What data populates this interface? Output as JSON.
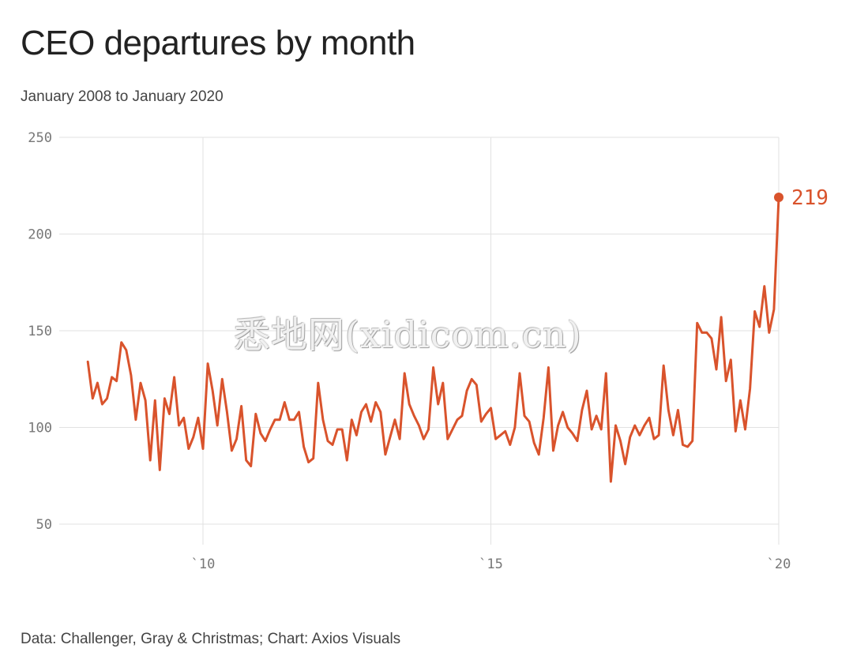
{
  "title": "CEO departures by month",
  "subtitle": "January 2008 to January 2020",
  "source": "Data: Challenger, Gray & Christmas; Chart: Axios Visuals",
  "watermark": "悉地网(xidicom.cn)",
  "colors": {
    "line": "#d9532c",
    "grid": "#e2e2e2",
    "tick": "#777777"
  },
  "chart_data": {
    "type": "line",
    "x_start": "2008-01",
    "x_end": "2020-01",
    "ylim": [
      50,
      250
    ],
    "xlim": [
      "2008",
      "2020"
    ],
    "y_ticks": [
      50,
      100,
      150,
      200,
      250
    ],
    "x_ticks": [
      {
        "year": "2010",
        "label": "`10"
      },
      {
        "year": "2015",
        "label": "`15"
      },
      {
        "year": "2020",
        "label": "`20"
      }
    ],
    "grid": true,
    "end_label": "219",
    "series": [
      {
        "values": [
          134,
          115,
          123,
          112,
          115,
          126,
          124,
          144,
          140,
          127,
          104,
          123,
          114,
          83,
          114,
          78,
          115,
          107,
          126,
          101,
          105,
          89,
          95,
          105,
          89,
          133,
          119,
          101,
          125,
          108,
          88,
          94,
          111,
          83,
          80,
          107,
          97,
          93,
          99,
          104,
          104,
          113,
          104,
          104,
          108,
          90,
          82,
          84,
          123,
          104,
          93,
          91,
          99,
          99,
          83,
          104,
          96,
          108,
          112,
          103,
          113,
          108,
          86,
          95,
          104,
          94,
          128,
          112,
          106,
          101,
          94,
          99,
          131,
          112,
          123,
          94,
          99,
          104,
          106,
          119,
          125,
          122,
          103,
          107,
          110,
          94,
          96,
          98,
          91,
          100,
          128,
          106,
          103,
          92,
          86,
          105,
          131,
          88,
          101,
          108,
          100,
          97,
          93,
          109,
          119,
          99,
          106,
          99,
          128,
          72,
          101,
          93,
          81,
          95,
          101,
          96,
          101,
          105,
          94,
          96,
          132,
          109,
          96,
          109,
          91,
          90,
          93,
          154,
          149,
          149,
          146,
          130,
          157,
          124,
          135,
          98,
          114,
          99,
          120,
          160,
          152,
          173,
          149,
          161,
          219
        ]
      }
    ]
  }
}
